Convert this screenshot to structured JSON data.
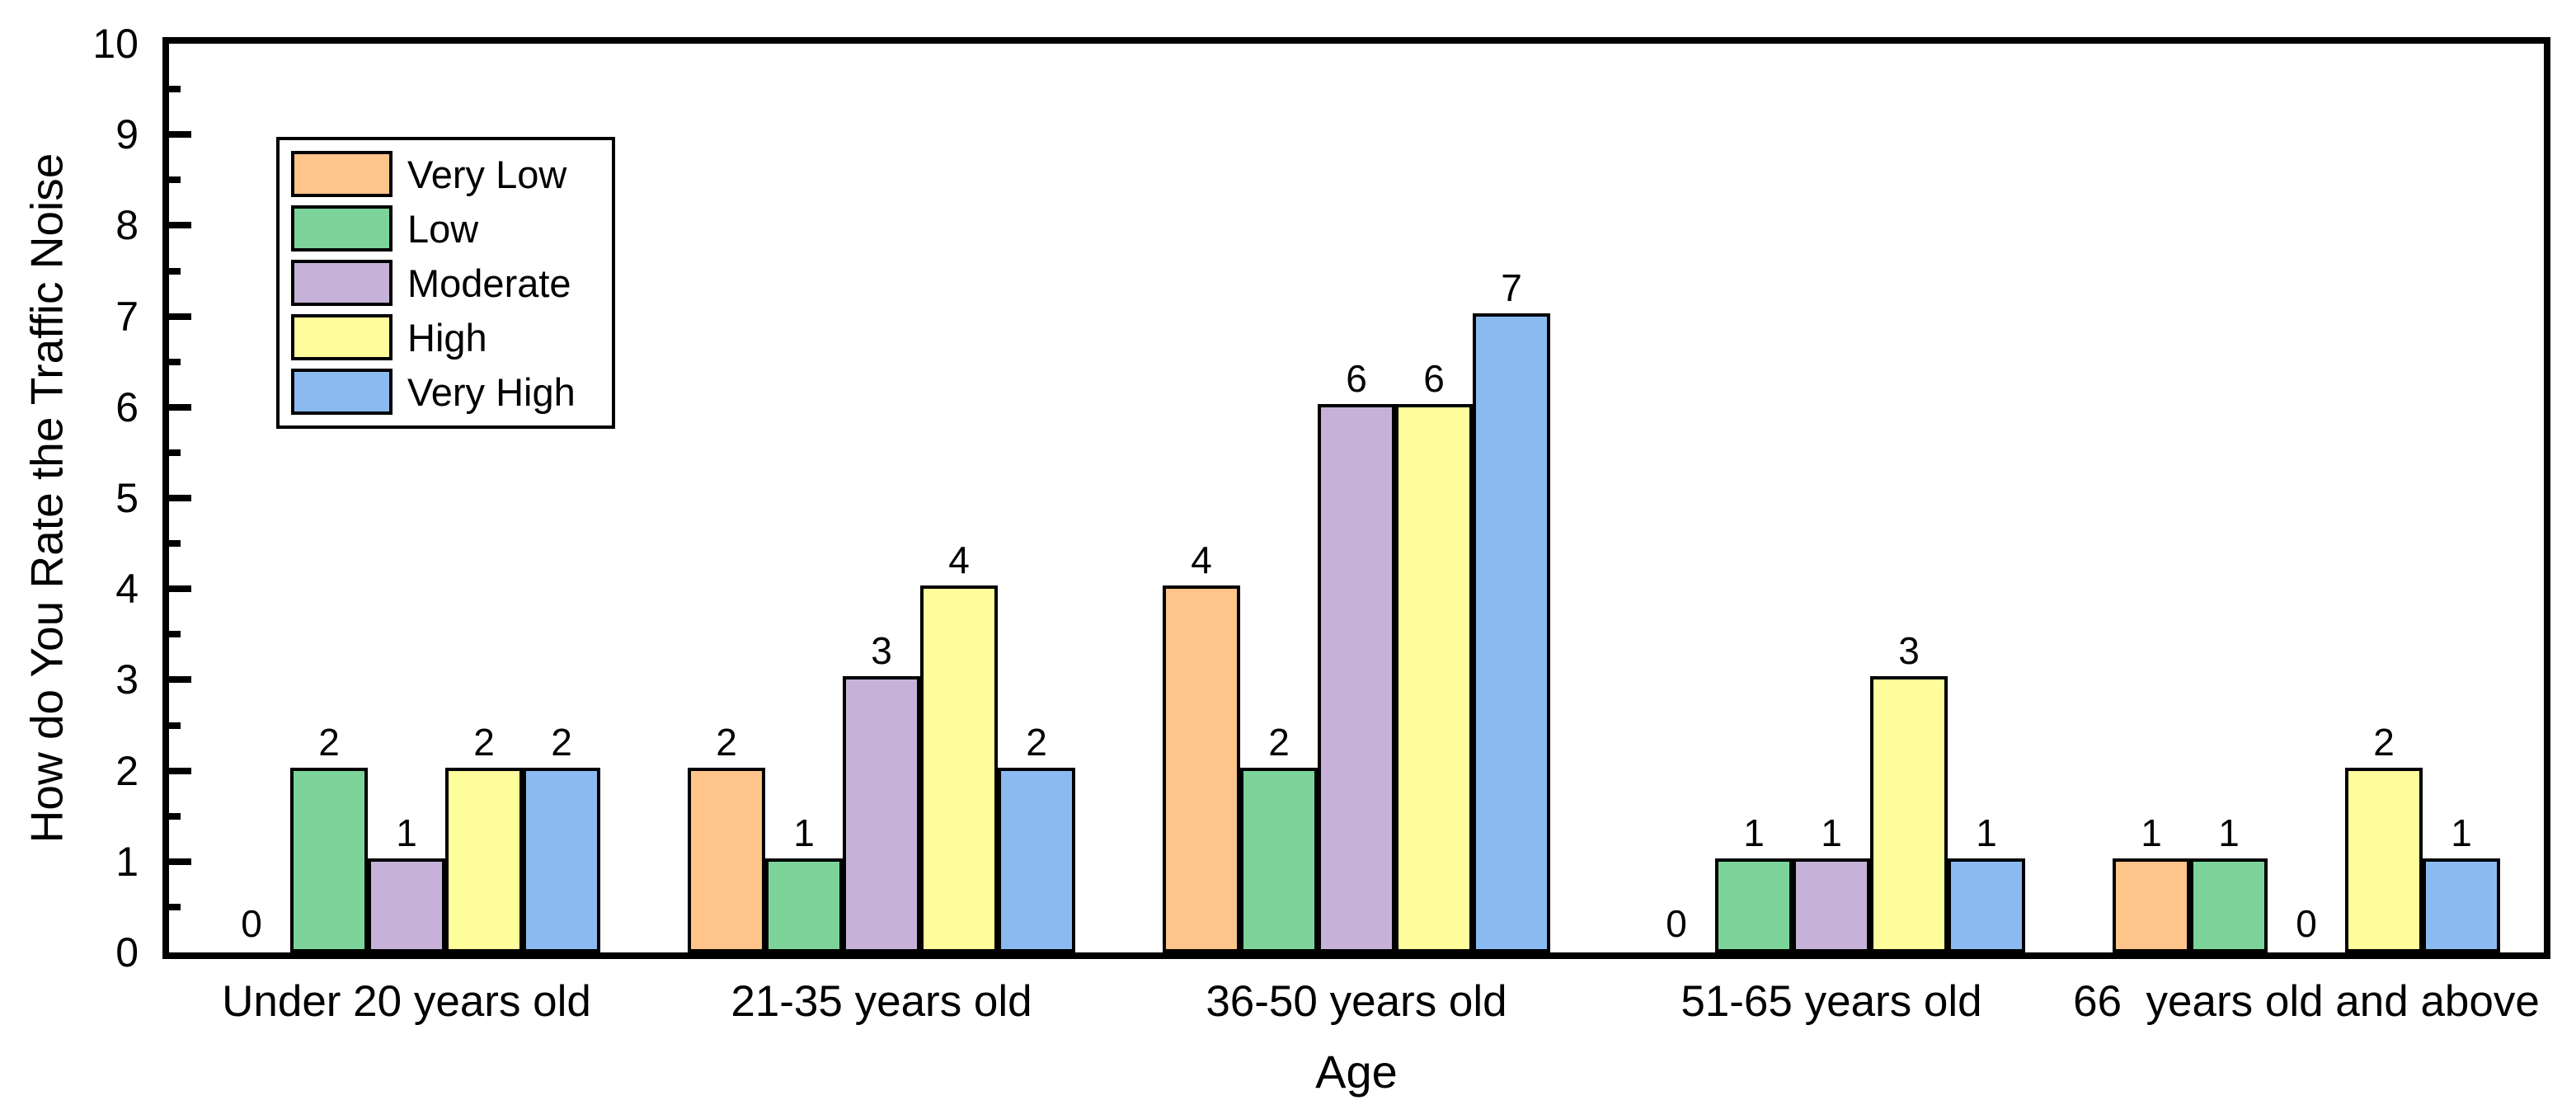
{
  "page": {
    "background": "#ffffff",
    "text_color": "#000000"
  },
  "chart_data": {
    "type": "bar",
    "title": "",
    "xlabel": "Age",
    "ylabel": "How do You Rate the Traffic Noise",
    "categories": [
      "Under 20 years old",
      "21-35 years old",
      "36-50 years old",
      "51-65 years old",
      "66  years old and above"
    ],
    "series": [
      {
        "name": "Very Low",
        "color": "#FEC489",
        "values": [
          0,
          2,
          4,
          0,
          1
        ]
      },
      {
        "name": "Low",
        "color": "#7CD49A",
        "values": [
          2,
          1,
          2,
          1,
          1
        ]
      },
      {
        "name": "Moderate",
        "color": "#C6B2D9",
        "values": [
          1,
          3,
          6,
          1,
          0
        ]
      },
      {
        "name": "High",
        "color": "#FEFD9B",
        "values": [
          2,
          4,
          6,
          3,
          2
        ]
      },
      {
        "name": "Very High",
        "color": "#8BBAF0",
        "values": [
          2,
          2,
          7,
          1,
          1
        ]
      }
    ],
    "ylim": [
      0,
      10
    ],
    "y_major_step": 1,
    "y_minor_step": 0.5,
    "y_tick_labels": [
      "0",
      "1",
      "2",
      "3",
      "4",
      "5",
      "6",
      "7",
      "8",
      "9",
      "10"
    ],
    "bar_value_labels": true,
    "bar_border_color": "#000000",
    "grid": false,
    "legend_position": "upper-left",
    "frame": "full-box"
  }
}
